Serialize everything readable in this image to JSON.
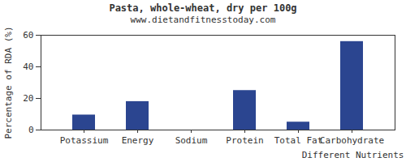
{
  "chart_data": {
    "type": "bar",
    "title": "Pasta, whole-wheat, dry per 100g",
    "subtitle": "www.dietandfitnesstoday.com",
    "x_label": "Different Nutrients",
    "y_label": "Percentage of RDA (%)",
    "categories": [
      "Potassium",
      "Energy",
      "Sodium",
      "Protein",
      "Total Fat",
      "Carbohydrate"
    ],
    "values": [
      9.5,
      18,
      0,
      25,
      5,
      56
    ],
    "color": "#2b4590",
    "ylim": [
      0,
      60
    ],
    "yticks": [
      0,
      20,
      40,
      60
    ],
    "grid": false
  }
}
